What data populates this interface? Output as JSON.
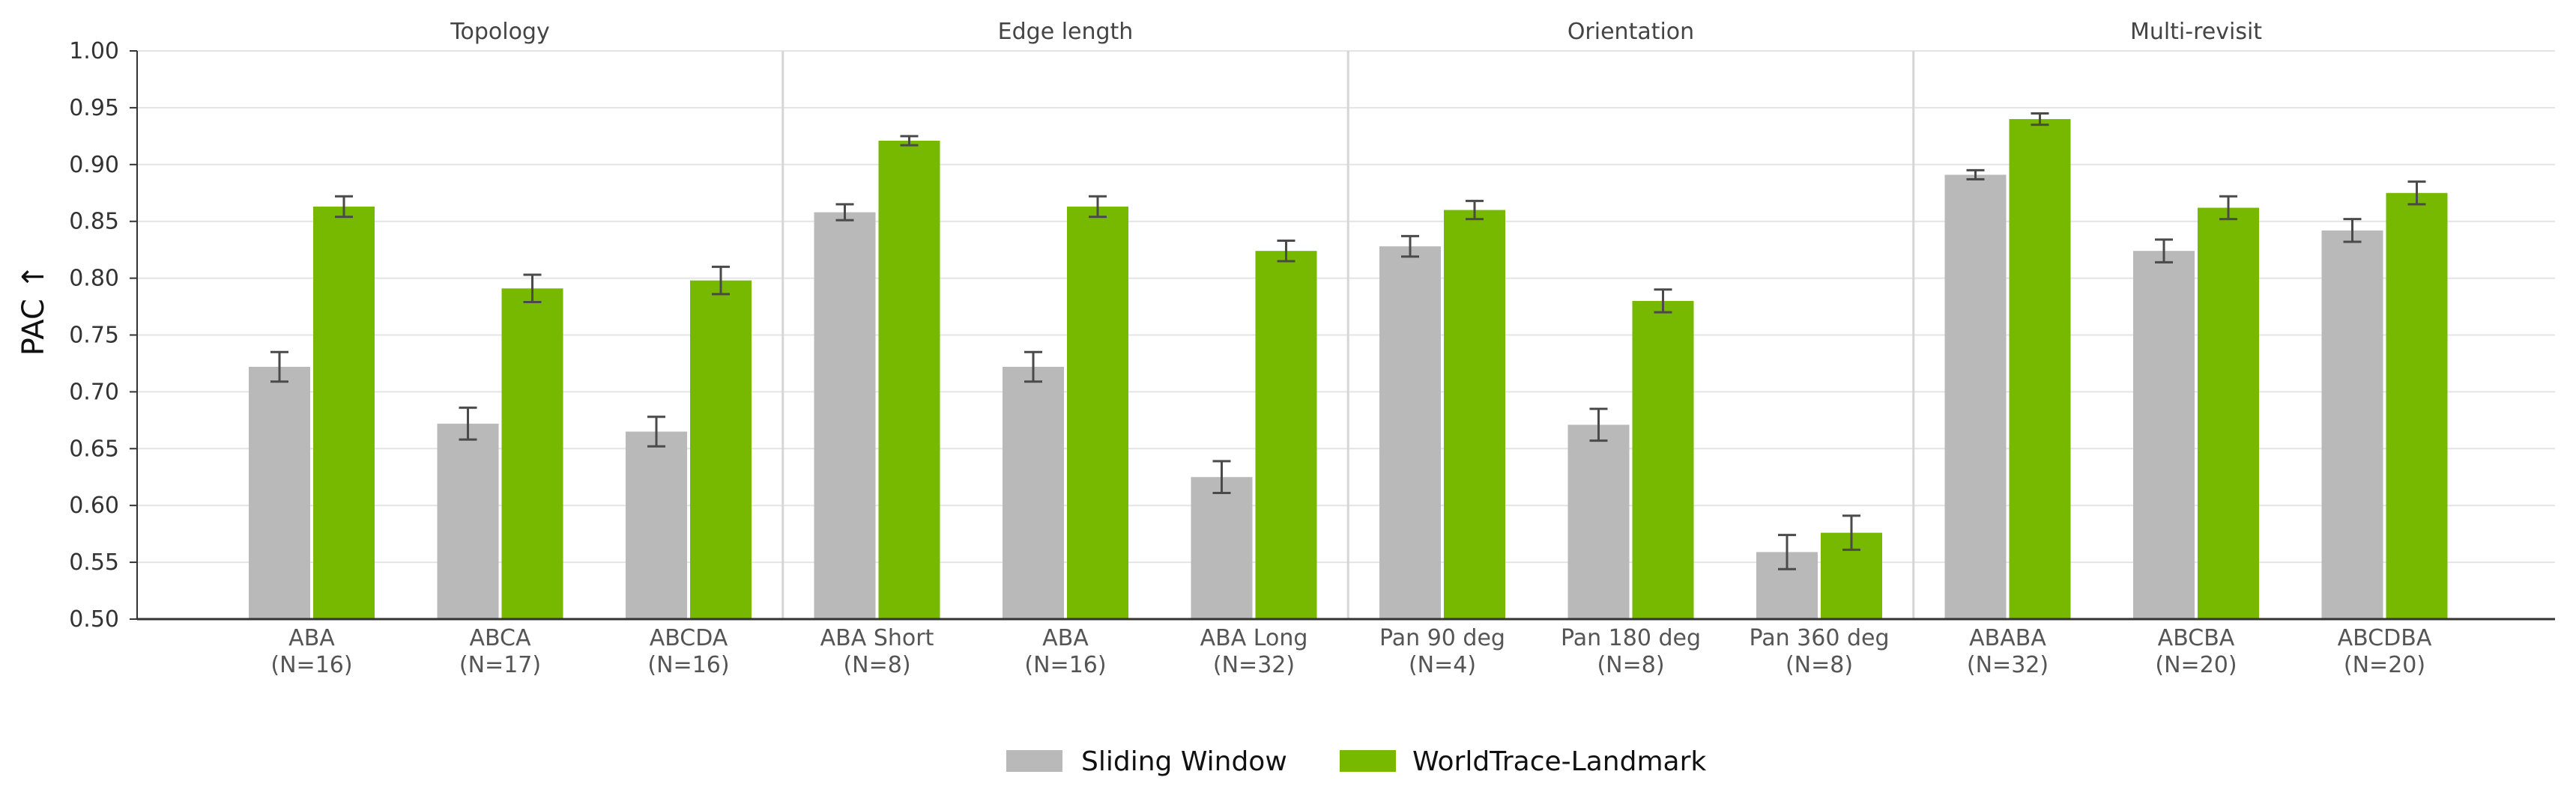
{
  "chart_data": {
    "type": "bar",
    "title": "",
    "ylabel": "PAC ↑",
    "xlabel": "",
    "ylim": [
      0.5,
      1.0
    ],
    "yticks": [
      "0.50",
      "0.55",
      "0.60",
      "0.65",
      "0.70",
      "0.75",
      "0.80",
      "0.85",
      "0.90",
      "0.95",
      "1.00"
    ],
    "grid": true,
    "legend_position": "bottom-center",
    "groups": [
      {
        "title": "Topology",
        "categories": [
          {
            "name": "ABA",
            "n": "(N=16)"
          },
          {
            "name": "ABCA",
            "n": "(N=17)"
          },
          {
            "name": "ABCDA",
            "n": "(N=16)"
          }
        ]
      },
      {
        "title": "Edge length",
        "categories": [
          {
            "name": "ABA Short",
            "n": "(N=8)"
          },
          {
            "name": "ABA",
            "n": "(N=16)"
          },
          {
            "name": "ABA Long",
            "n": "(N=32)"
          }
        ]
      },
      {
        "title": "Orientation",
        "categories": [
          {
            "name": "Pan 90 deg",
            "n": "(N=4)"
          },
          {
            "name": "Pan 180 deg",
            "n": "(N=8)"
          },
          {
            "name": "Pan 360 deg",
            "n": "(N=8)"
          }
        ]
      },
      {
        "title": "Multi-revisit",
        "categories": [
          {
            "name": "ABABA",
            "n": "(N=32)"
          },
          {
            "name": "ABCBA",
            "n": "(N=20)"
          },
          {
            "name": "ABCDBA",
            "n": "(N=20)"
          }
        ]
      }
    ],
    "series": [
      {
        "name": "Sliding Window",
        "color": "#b9b9b9",
        "values": [
          0.722,
          0.672,
          0.665,
          0.858,
          0.722,
          0.625,
          0.828,
          0.671,
          0.559,
          0.891,
          0.824,
          0.842
        ],
        "errors": [
          0.013,
          0.014,
          0.013,
          0.007,
          0.013,
          0.014,
          0.009,
          0.014,
          0.015,
          0.004,
          0.01,
          0.01
        ]
      },
      {
        "name": "WorldTrace-Landmark",
        "color": "#76b900",
        "values": [
          0.863,
          0.791,
          0.798,
          0.921,
          0.863,
          0.824,
          0.86,
          0.78,
          0.576,
          0.94,
          0.862,
          0.875
        ],
        "errors": [
          0.009,
          0.012,
          0.012,
          0.004,
          0.009,
          0.009,
          0.008,
          0.01,
          0.015,
          0.005,
          0.01,
          0.01
        ]
      }
    ]
  }
}
